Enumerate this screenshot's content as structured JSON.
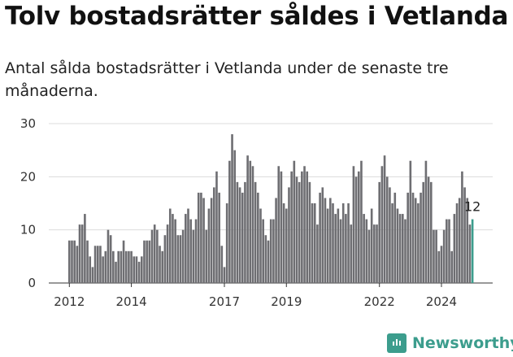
{
  "title": "Tolv bostadsrätter såldes i Vetlanda",
  "subtitle": "Antal sålda bostadsrätter i Vetlanda under de senaste tre månaderna.",
  "brand": {
    "name": "Newsworthy",
    "icon": "bar-chart-logo-icon",
    "color": "#3c9d8d"
  },
  "chart_data": {
    "type": "bar",
    "title": "Tolv bostadsrätter såldes i Vetlanda",
    "subtitle": "Antal sålda bostadsrätter i Vetlanda under de senaste tre månaderna.",
    "xlabel": "",
    "ylabel": "",
    "ylim": [
      0,
      30
    ],
    "yticks": [
      0,
      10,
      20,
      30
    ],
    "xticks": [
      "2012",
      "2014",
      "2017",
      "2019",
      "2022",
      "2024"
    ],
    "grid": true,
    "colors": {
      "bars": "#6e6e72",
      "highlight": "#3c9d8d"
    },
    "highlight_label": "12",
    "values": [
      8,
      8,
      8,
      7,
      11,
      11,
      13,
      8,
      5,
      3,
      7,
      7,
      7,
      5,
      6,
      10,
      9,
      6,
      4,
      6,
      6,
      8,
      6,
      6,
      6,
      5,
      5,
      4,
      5,
      8,
      8,
      8,
      10,
      11,
      10,
      7,
      6,
      9,
      11,
      14,
      13,
      12,
      9,
      9,
      10,
      13,
      14,
      12,
      10,
      12,
      17,
      17,
      16,
      10,
      14,
      16,
      18,
      21,
      17,
      7,
      3,
      15,
      23,
      28,
      25,
      19,
      18,
      17,
      19,
      24,
      23,
      22,
      19,
      17,
      14,
      12,
      9,
      8,
      12,
      12,
      16,
      22,
      21,
      15,
      14,
      18,
      21,
      23,
      20,
      19,
      21,
      22,
      21,
      19,
      15,
      15,
      11,
      17,
      18,
      16,
      14,
      16,
      15,
      13,
      14,
      12,
      15,
      13,
      15,
      11,
      22,
      20,
      21,
      23,
      13,
      12,
      10,
      14,
      11,
      11,
      19,
      22,
      24,
      20,
      18,
      15,
      17,
      14,
      13,
      13,
      12,
      17,
      23,
      17,
      16,
      15,
      17,
      19,
      23,
      20,
      19,
      10,
      10,
      6,
      7,
      10,
      12,
      12,
      6,
      13,
      15,
      16,
      21,
      18,
      16,
      11,
      12
    ]
  }
}
